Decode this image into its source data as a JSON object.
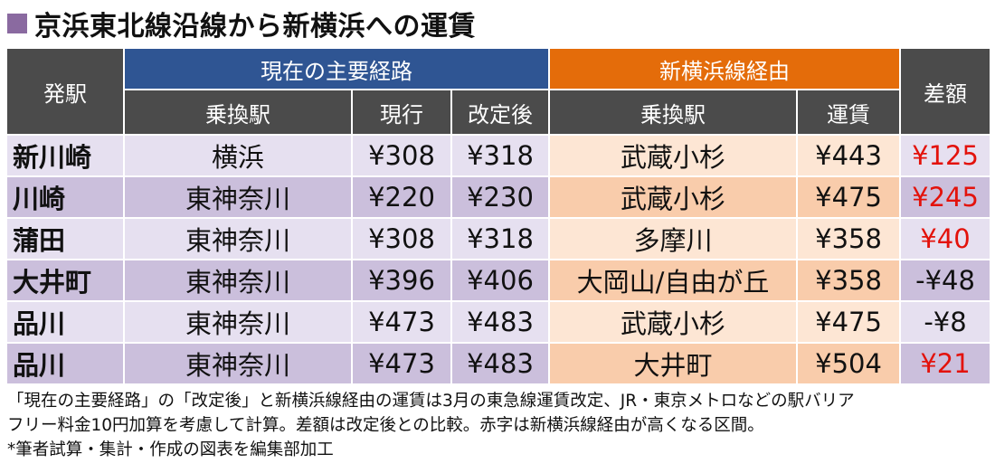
{
  "title": "京浜東北線沿線から新横浜への運賃",
  "colors": {
    "title_square": "#8a6aa0",
    "header_dark": "#4b4b4b",
    "header_blue": "#2f5593",
    "header_orange": "#e46c0a",
    "row_lavender": "#e6e0f0",
    "row_lavender_dark": "#cbbfdc",
    "row_peach": "#fde6d4",
    "row_peach_dark": "#f9ccab",
    "red_text": "#e3120b"
  },
  "headers": {
    "origin": "発駅",
    "group_main": "現在の主要経路",
    "group_new": "新横浜線経由",
    "transfer_main": "乗換駅",
    "current": "現行",
    "revised": "改定後",
    "transfer_new": "乗換駅",
    "fare": "運賃",
    "diff": "差額"
  },
  "rows": [
    {
      "station": "新川崎",
      "transfer_main": "横浜",
      "current": "¥308",
      "revised": "¥318",
      "transfer_new": "武蔵小杉",
      "fare": "¥443",
      "diff": "¥125",
      "diff_red": true
    },
    {
      "station": "川崎",
      "transfer_main": "東神奈川",
      "current": "¥220",
      "revised": "¥230",
      "transfer_new": "武蔵小杉",
      "fare": "¥475",
      "diff": "¥245",
      "diff_red": true
    },
    {
      "station": "蒲田",
      "transfer_main": "東神奈川",
      "current": "¥308",
      "revised": "¥318",
      "transfer_new": "多摩川",
      "fare": "¥358",
      "diff": "¥40",
      "diff_red": true
    },
    {
      "station": "大井町",
      "transfer_main": "東神奈川",
      "current": "¥396",
      "revised": "¥406",
      "transfer_new": "大岡山/自由が丘",
      "fare": "¥358",
      "diff": "-¥48",
      "diff_red": false
    },
    {
      "station": "品川",
      "transfer_main": "東神奈川",
      "current": "¥473",
      "revised": "¥483",
      "transfer_new": "武蔵小杉",
      "fare": "¥475",
      "diff": "-¥8",
      "diff_red": false
    },
    {
      "station": "品川",
      "transfer_main": "東神奈川",
      "current": "¥473",
      "revised": "¥483",
      "transfer_new": "大井町",
      "fare": "¥504",
      "diff": "¥21",
      "diff_red": true
    }
  ],
  "notes": [
    "「現在の主要経路」の「改定後」と新横浜線経由の運賃は3月の東急線運賃改定、JR・東京メトロなどの駅バリア",
    "フリー料金10円加算を考慮して計算。差額は改定後との比較。赤字は新横浜線経由が高くなる区間。",
    "*筆者試算・集計・作成の図表を編集部加工"
  ]
}
